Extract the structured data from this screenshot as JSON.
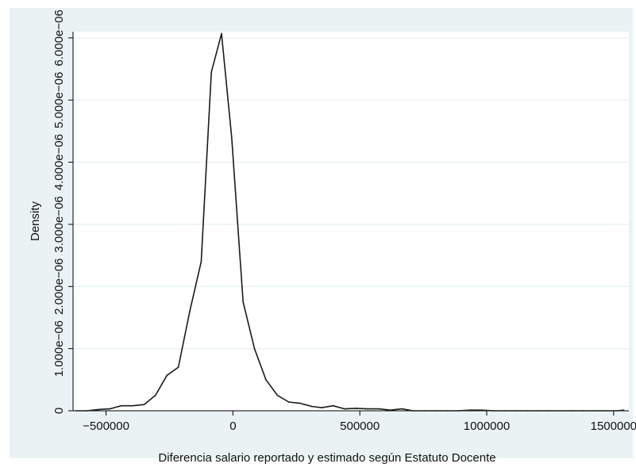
{
  "colors": {
    "outer_background": "#ffffff",
    "plot_region": "#eaf2f3",
    "plot_background": "#ffffff",
    "gridline": "#eaf2f3",
    "line": "#1a1a1a",
    "axis": "#000000"
  },
  "chart_data": {
    "type": "line",
    "title": "",
    "xlabel": "Diferencia salario reportado y estimado según Estatuto Docente",
    "ylabel": "Density",
    "xlim": [
      -630000,
      1560000
    ],
    "ylim": [
      0,
      6.1e-06
    ],
    "grid": true,
    "legend": "none",
    "x_ticks": [
      {
        "value": -500000,
        "label": "−500000"
      },
      {
        "value": 0,
        "label": "0"
      },
      {
        "value": 500000,
        "label": "500000"
      },
      {
        "value": 1000000,
        "label": "1000000"
      },
      {
        "value": 1500000,
        "label": "1500000"
      }
    ],
    "y_ticks": [
      {
        "value": 0,
        "label": "0"
      },
      {
        "value": 1e-06,
        "label": "1.000e−06"
      },
      {
        "value": 2e-06,
        "label": "2.000e−06"
      },
      {
        "value": 3e-06,
        "label": "3.000e−06"
      },
      {
        "value": 4e-06,
        "label": "4.000e−06"
      },
      {
        "value": 5e-06,
        "label": "5.000e−06"
      },
      {
        "value": 6e-06,
        "label": "6.000e−06"
      }
    ],
    "series": [
      {
        "x": [
          -620000,
          -575000,
          -530000,
          -485000,
          -440000,
          -395000,
          -350000,
          -305000,
          -260000,
          -215000,
          -170000,
          -125000,
          -85000,
          -45000,
          -5000,
          40000,
          85000,
          130000,
          175000,
          220000,
          265000,
          310000,
          350000,
          395000,
          440000,
          485000,
          530000,
          575000,
          620000,
          665000,
          710000,
          755000,
          800000,
          845000,
          890000,
          935000,
          980000,
          1025000,
          1070000,
          1115000,
          1160000,
          1200000,
          1245000,
          1290000,
          1335000,
          1380000,
          1425000,
          1470000,
          1515000,
          1540000
        ],
        "y": [
          0.0,
          0.0,
          2e-08,
          3e-08,
          8e-08,
          8e-08,
          1e-07,
          2.5e-07,
          5.7e-07,
          7e-07,
          1.6e-06,
          2.4e-06,
          5.45e-06,
          6.07e-06,
          4.4e-06,
          1.75e-06,
          1e-06,
          5e-07,
          2.5e-07,
          1.4e-07,
          1.2e-07,
          7e-08,
          5e-08,
          8e-08,
          3e-08,
          4e-08,
          3e-08,
          3e-08,
          1e-08,
          3e-08,
          0.0,
          0.0,
          0.0,
          0.0,
          0.0,
          1e-08,
          1e-08,
          0.0,
          0.0,
          0.0,
          0.0,
          0.0,
          0.0,
          0.0,
          0.0,
          0.0,
          0.0,
          0.0,
          0.0,
          1e-08
        ]
      }
    ]
  }
}
